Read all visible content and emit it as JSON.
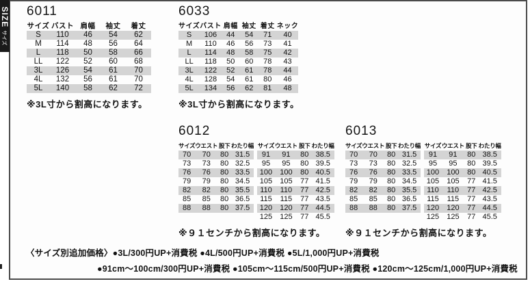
{
  "banner": {
    "en": "SIZE",
    "ja": "サイズ"
  },
  "tables": [
    {
      "id": "6011",
      "note": "※3L寸から割高になります。",
      "sub_tables": [
        {
          "headers": [
            "サイズ",
            "バスト",
            "肩幅",
            "袖丈",
            "着丈"
          ],
          "rows": [
            [
              "S",
              "110",
              "46",
              "54",
              "62"
            ],
            [
              "M",
              "114",
              "48",
              "56",
              "64"
            ],
            [
              "L",
              "118",
              "50",
              "58",
              "66"
            ],
            [
              "LL",
              "122",
              "52",
              "60",
              "68"
            ],
            [
              "3L",
              "126",
              "54",
              "61",
              "70"
            ],
            [
              "4L",
              "132",
              "56",
              "61",
              "70"
            ],
            [
              "5L",
              "140",
              "58",
              "62",
              "72"
            ]
          ]
        }
      ]
    },
    {
      "id": "6033",
      "note": "※3L寸から割高になります。",
      "sub_tables": [
        {
          "headers": [
            "サイズ",
            "バスト",
            "肩幅",
            "袖丈",
            "着丈",
            "ネック"
          ],
          "rows": [
            [
              "S",
              "106",
              "44",
              "54",
              "71",
              "40"
            ],
            [
              "M",
              "110",
              "46",
              "56",
              "73",
              "41"
            ],
            [
              "L",
              "114",
              "48",
              "58",
              "75",
              "42"
            ],
            [
              "LL",
              "118",
              "50",
              "60",
              "78",
              "43"
            ],
            [
              "3L",
              "122",
              "52",
              "61",
              "78",
              "44"
            ],
            [
              "4L",
              "128",
              "54",
              "61",
              "80",
              "46"
            ],
            [
              "5L",
              "134",
              "56",
              "62",
              "81",
              "48"
            ]
          ]
        }
      ]
    },
    {
      "id": "6012",
      "note": "※９１センチから割高になります。",
      "sub_tables": [
        {
          "headers": [
            "サイズ",
            "ウエスト",
            "股下",
            "わたり幅"
          ],
          "rows": [
            [
              "70",
              "70",
              "80",
              "31.5"
            ],
            [
              "73",
              "73",
              "80",
              "32.5"
            ],
            [
              "76",
              "76",
              "80",
              "33.5"
            ],
            [
              "79",
              "79",
              "80",
              "34.5"
            ],
            [
              "82",
              "82",
              "80",
              "35.5"
            ],
            [
              "85",
              "85",
              "80",
              "36.5"
            ],
            [
              "88",
              "88",
              "80",
              "37.5"
            ]
          ]
        },
        {
          "headers": [
            "サイズ",
            "ウエスト",
            "股下",
            "わたり幅"
          ],
          "rows": [
            [
              "91",
              "91",
              "80",
              "38.5"
            ],
            [
              "95",
              "95",
              "80",
              "39.5"
            ],
            [
              "100",
              "100",
              "80",
              "40.5"
            ],
            [
              "105",
              "105",
              "77",
              "41.5"
            ],
            [
              "110",
              "110",
              "77",
              "42.5"
            ],
            [
              "115",
              "115",
              "77",
              "43.5"
            ],
            [
              "120",
              "120",
              "77",
              "44.5"
            ],
            [
              "125",
              "125",
              "77",
              "45.5"
            ]
          ]
        }
      ]
    },
    {
      "id": "6013",
      "note": "※９１センチから割高になります。",
      "sub_tables": [
        {
          "headers": [
            "サイズ",
            "ウエスト",
            "股下",
            "わたり幅"
          ],
          "rows": [
            [
              "70",
              "70",
              "80",
              "31.5"
            ],
            [
              "73",
              "73",
              "80",
              "32.5"
            ],
            [
              "76",
              "76",
              "80",
              "33.5"
            ],
            [
              "79",
              "79",
              "80",
              "34.5"
            ],
            [
              "82",
              "82",
              "80",
              "35.5"
            ],
            [
              "85",
              "85",
              "80",
              "36.5"
            ],
            [
              "88",
              "88",
              "80",
              "37.5"
            ]
          ]
        },
        {
          "headers": [
            "サイズ",
            "ウエスト",
            "股下",
            "わたり幅"
          ],
          "rows": [
            [
              "91",
              "91",
              "80",
              "38.5"
            ],
            [
              "95",
              "95",
              "80",
              "39.5"
            ],
            [
              "100",
              "100",
              "80",
              "40.5"
            ],
            [
              "105",
              "105",
              "77",
              "41.5"
            ],
            [
              "110",
              "110",
              "77",
              "42.5"
            ],
            [
              "115",
              "115",
              "77",
              "43.5"
            ],
            [
              "120",
              "120",
              "77",
              "44.5"
            ],
            [
              "125",
              "125",
              "77",
              "45.5"
            ]
          ]
        }
      ]
    }
  ],
  "pricing": {
    "label": "〈サイズ別追加価格〉",
    "line1": "●3L/300円UP+消費税 ●4L/500円UP+消費税 ●5L/1,000円UP+消費税",
    "line2": "●91cm〜100cm/300円UP+消費税 ●105cm〜115cm/500円UP+消費税 ●120cm〜125cm/1,000円UP+消費税"
  },
  "colors": {
    "stripe": "#d4d4d4",
    "banner_bg": "#1a1a1a",
    "frame_border": "#4a4a4a",
    "text": "#111111"
  }
}
